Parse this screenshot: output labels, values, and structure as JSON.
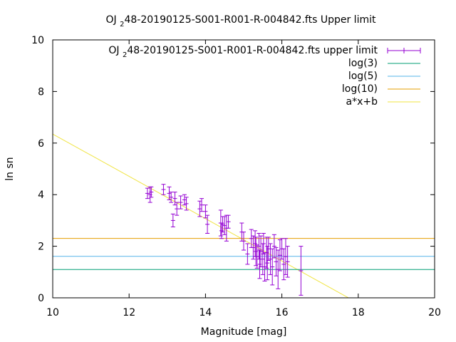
{
  "chart_data": {
    "type": "scatter",
    "title": {
      "prefix": "OJ ",
      "sub": "2",
      "rest": "48-20190125-S001-R001-R-004842.fts Upper limit"
    },
    "xlabel": "Magnitude [mag]",
    "ylabel": "ln sn",
    "xlim": [
      10,
      20
    ],
    "ylim": [
      0,
      10
    ],
    "xticks": [
      10,
      12,
      14,
      16,
      18,
      20
    ],
    "yticks": [
      0,
      2,
      4,
      6,
      8,
      10
    ],
    "grid": false,
    "legend_position": "top-right",
    "series": [
      {
        "name": {
          "prefix": "OJ ",
          "sub": "2",
          "rest": "48-20190125-S001-R001-R-004842.fts upper limit"
        },
        "kind": "errorbar",
        "color": "#9400d3",
        "points": [
          [
            12.48,
            4.05,
            0.2
          ],
          [
            12.55,
            4.0,
            0.3
          ],
          [
            12.58,
            4.1,
            0.2
          ],
          [
            12.9,
            4.2,
            0.2
          ],
          [
            13.05,
            4.05,
            0.25
          ],
          [
            13.1,
            3.9,
            0.2
          ],
          [
            13.15,
            3.0,
            0.25
          ],
          [
            13.2,
            3.85,
            0.25
          ],
          [
            13.25,
            3.45,
            0.25
          ],
          [
            13.35,
            3.7,
            0.25
          ],
          [
            13.45,
            3.8,
            0.2
          ],
          [
            13.5,
            3.65,
            0.25
          ],
          [
            13.85,
            3.45,
            0.3
          ],
          [
            13.9,
            3.6,
            0.25
          ],
          [
            14.0,
            3.35,
            0.25
          ],
          [
            14.05,
            2.85,
            0.35
          ],
          [
            14.4,
            2.9,
            0.5
          ],
          [
            14.42,
            2.6,
            0.3
          ],
          [
            14.45,
            2.85,
            0.3
          ],
          [
            14.5,
            2.8,
            0.35
          ],
          [
            14.55,
            2.7,
            0.5
          ],
          [
            14.6,
            2.95,
            0.25
          ],
          [
            14.95,
            2.55,
            0.35
          ],
          [
            15.0,
            2.2,
            0.35
          ],
          [
            15.1,
            1.7,
            0.4
          ],
          [
            15.2,
            2.3,
            0.35
          ],
          [
            15.25,
            1.95,
            0.45
          ],
          [
            15.3,
            2.1,
            0.5
          ],
          [
            15.32,
            1.8,
            0.55
          ],
          [
            15.35,
            1.6,
            0.45
          ],
          [
            15.4,
            2.0,
            0.5
          ],
          [
            15.42,
            1.3,
            0.55
          ],
          [
            15.45,
            1.8,
            0.6
          ],
          [
            15.5,
            1.5,
            0.6
          ],
          [
            15.52,
            2.1,
            0.4
          ],
          [
            15.55,
            1.2,
            0.55
          ],
          [
            15.6,
            1.75,
            0.6
          ],
          [
            15.62,
            1.35,
            0.65
          ],
          [
            15.65,
            1.9,
            0.45
          ],
          [
            15.7,
            1.5,
            0.6
          ],
          [
            15.75,
            1.2,
            0.7
          ],
          [
            15.8,
            2.0,
            0.45
          ],
          [
            15.85,
            1.4,
            0.55
          ],
          [
            15.9,
            1.1,
            0.75
          ],
          [
            15.95,
            1.65,
            0.6
          ],
          [
            16.0,
            1.9,
            0.4
          ],
          [
            16.05,
            1.3,
            0.6
          ],
          [
            16.1,
            1.6,
            0.7
          ],
          [
            16.15,
            1.4,
            0.6
          ],
          [
            16.5,
            1.05,
            0.95
          ]
        ]
      },
      {
        "name": "log(3)",
        "kind": "hline",
        "y": 1.0986,
        "color": "#009e73"
      },
      {
        "name": "log(5)",
        "kind": "hline",
        "y": 1.6094,
        "color": "#56b4e9"
      },
      {
        "name": "log(10)",
        "kind": "hline",
        "y": 2.3026,
        "color": "#e69f00"
      },
      {
        "name": "a*x+b",
        "kind": "fit",
        "slope": -0.82,
        "intercept": 14.55,
        "color": "#f0e442"
      }
    ]
  }
}
